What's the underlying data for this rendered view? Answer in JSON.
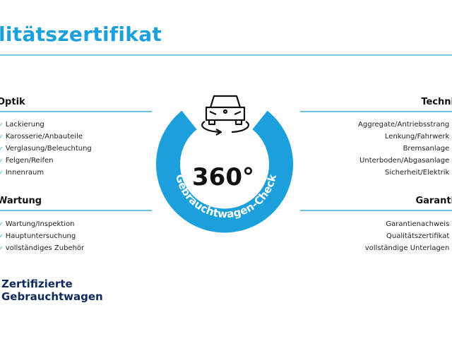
{
  "title": "litätszertifikat",
  "accent": "#1ca0dc",
  "left": {
    "optik": {
      "heading": "Optik",
      "items": [
        "Lackierung",
        "Karosserie/Anbauteile",
        "Verglasung/Beleuchtung",
        "Felgen/Reifen",
        "Innenraum"
      ]
    },
    "wartung": {
      "heading": "Wartung",
      "items": [
        "Wartung/Inspektion",
        "Hauptuntersuchung",
        "vollständiges Zubehör"
      ]
    }
  },
  "right": {
    "technik": {
      "heading": "Techni",
      "items": [
        "Aggregate/Antriebsstrang",
        "Lenkung/Fahrwerk",
        "Bremsanlage",
        "Unterboden/Abgasanlage",
        "Sicherheit/Elektrik"
      ]
    },
    "garantie": {
      "heading": "Garanti",
      "items": [
        "Garantienachweis",
        "Qualitätszertifikat",
        "vollständige Unterlagen"
      ]
    }
  },
  "badge": {
    "value": "360°",
    "arc_text": "Gebrauchtwagen-Check",
    "icon": "car-rotate-icon"
  },
  "brand": {
    "line1": "Zertifizierte",
    "line2": "Gebrauchtwagen"
  }
}
